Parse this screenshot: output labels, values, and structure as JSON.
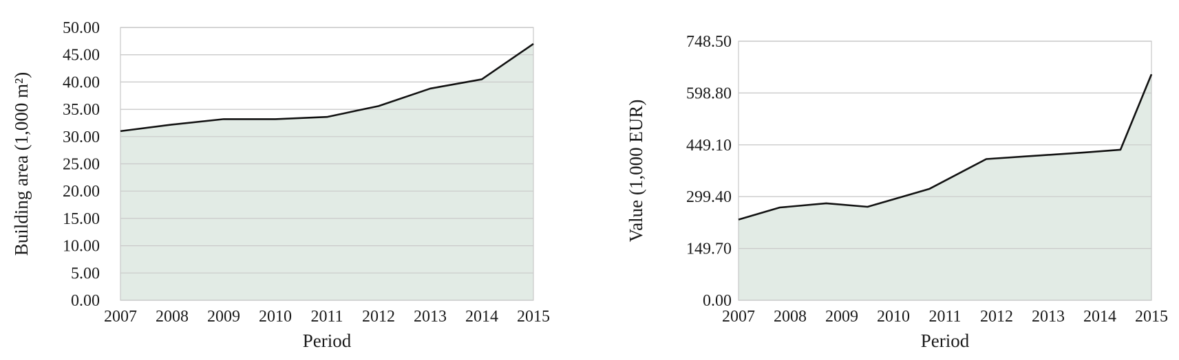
{
  "chart_data": [
    {
      "type": "area",
      "xlabel": "Period",
      "ylabel": "Building area (1,000 m²)",
      "ylim": [
        0,
        50
      ],
      "y_ticks": [
        "0.00",
        "5.00",
        "10.00",
        "15.00",
        "20.00",
        "25.00",
        "30.00",
        "35.00",
        "40.00",
        "45.00",
        "50.00"
      ],
      "x_ticks": [
        "2007",
        "2008",
        "2009",
        "2010",
        "2011",
        "2012",
        "2013",
        "2014",
        "2015"
      ],
      "x": [
        2007,
        2008,
        2009,
        2010,
        2011,
        2012,
        2013,
        2014,
        2015
      ],
      "series": [
        {
          "values": [
            31.0,
            32.2,
            33.2,
            33.2,
            33.6,
            35.6,
            38.8,
            40.5,
            47.0
          ]
        }
      ],
      "grid": true,
      "fill_color": "#e2ebe5",
      "line_color": "#111111"
    },
    {
      "type": "area",
      "xlabel": "Period",
      "ylabel": "Value (1,000 EUR)",
      "ylim": [
        0,
        748.5
      ],
      "y_ticks": [
        "0.00",
        "149.70",
        "299.40",
        "449.10",
        "598.80",
        "748.50"
      ],
      "x_ticks": [
        "2007",
        "2008",
        "2009",
        "2010",
        "2011",
        "2012",
        "2013",
        "2014",
        "2015"
      ],
      "x": [
        2007,
        2007.8,
        2008.7,
        2009.5,
        2010.7,
        2011.8,
        2012.6,
        2013.7,
        2014.4,
        2015
      ],
      "series": [
        {
          "values": [
            233,
            268,
            280,
            270,
            322,
            408,
            416,
            427,
            435,
            653
          ]
        }
      ],
      "grid": true,
      "fill_color": "#e2ebe5",
      "line_color": "#111111"
    }
  ]
}
